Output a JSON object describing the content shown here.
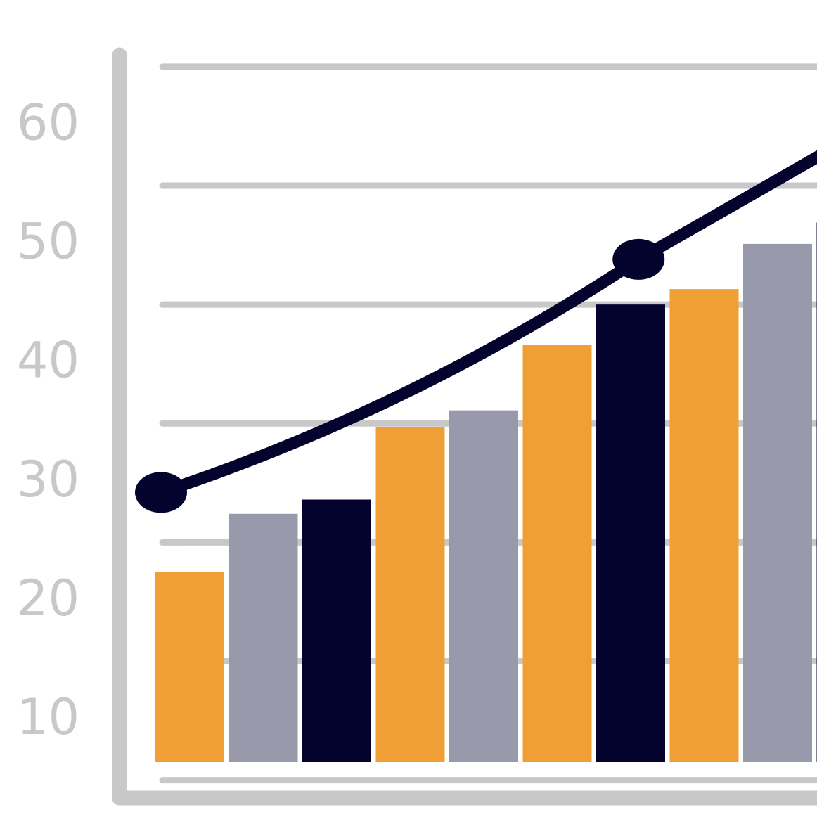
{
  "chart_data": {
    "type": "bar",
    "title": "",
    "xlabel": "",
    "ylabel": "",
    "y_ticks": [
      "10",
      "20",
      "30",
      "40",
      "50",
      "60"
    ],
    "ylim": [
      3.5,
      66
    ],
    "grid": true,
    "legend": "none",
    "bars": [
      {
        "value": 22.5,
        "color": "#ef9f35"
      },
      {
        "value": 27.4,
        "color": "#9899ab"
      },
      {
        "value": 28.6,
        "color": "#03032e"
      },
      {
        "value": 34.7,
        "color": "#ef9f35"
      },
      {
        "value": 36.1,
        "color": "#9899ab"
      },
      {
        "value": 41.6,
        "color": "#ef9f35"
      },
      {
        "value": 45.0,
        "color": "#03032e"
      },
      {
        "value": 46.3,
        "color": "#ef9f35"
      },
      {
        "value": 50.1,
        "color": "#9899ab"
      },
      {
        "value": 51.9,
        "color": "#03032e"
      }
    ],
    "trend_line": {
      "color": "#03032e",
      "points": [
        {
          "x": 0,
          "y": 29.2
        },
        {
          "x": 6.5,
          "y": 48.8
        },
        {
          "x": 9.1,
          "y": 58.0
        }
      ],
      "markers_at": [
        0,
        1
      ]
    }
  },
  "colors": {
    "axis": "#c8c8c8",
    "grid": "#c8c8c8",
    "orange": "#ef9f35",
    "grey": "#9899ab",
    "navy": "#03032e"
  }
}
